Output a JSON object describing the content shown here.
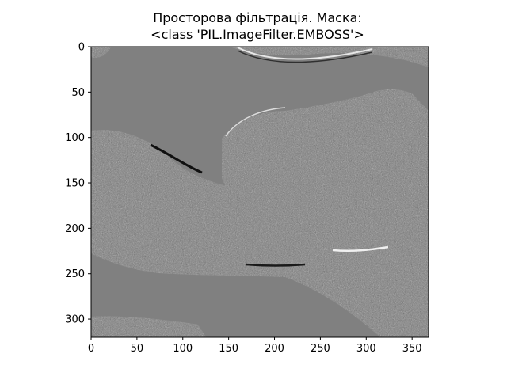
{
  "chart_data": {
    "type": "heatmap",
    "title_lines": [
      "Просторова фільтрація. Маска:",
      "<class 'PIL.ImageFilter.EMBOSS'>"
    ],
    "colormap": "gray",
    "image_width": 368,
    "image_height": 320,
    "xlim": [
      0,
      368
    ],
    "ylim": [
      320,
      0
    ],
    "x_ticks": [
      0,
      50,
      100,
      150,
      200,
      250,
      300,
      350
    ],
    "y_ticks": [
      0,
      50,
      100,
      150,
      200,
      250,
      300
    ],
    "x_tick_labels": [
      "0",
      "50",
      "100",
      "150",
      "200",
      "250",
      "300",
      "350"
    ],
    "y_tick_labels": [
      "0",
      "50",
      "100",
      "150",
      "200",
      "250",
      "300"
    ],
    "xlabel": "",
    "ylabel": "",
    "grid": false,
    "background_gray": "#808080",
    "image_description_note": ""
  }
}
